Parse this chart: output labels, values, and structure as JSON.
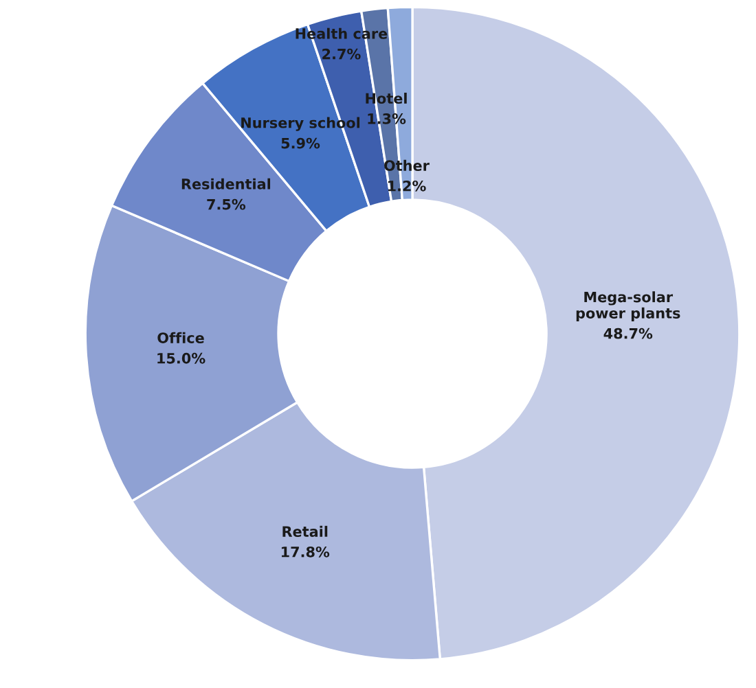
{
  "chart_data": {
    "type": "donut",
    "categories": [
      "Mega-solar\npower plants",
      "Retail",
      "Office",
      "Residential",
      "Nursery school",
      "Health care",
      "Hotel",
      "Other"
    ],
    "values": [
      48.7,
      17.8,
      15.0,
      7.5,
      5.9,
      2.7,
      1.3,
      1.2
    ],
    "colors": [
      "#c5cde7",
      "#adb9de",
      "#8fa1d3",
      "#6f88ca",
      "#4472c4",
      "#3e5fae",
      "#5a74a8",
      "#8eaadc"
    ],
    "value_labels": [
      "48.7%",
      "17.8%",
      "15.0%",
      "7.5%",
      "5.9%",
      "2.7%",
      "1.3%",
      "1.2%"
    ]
  }
}
